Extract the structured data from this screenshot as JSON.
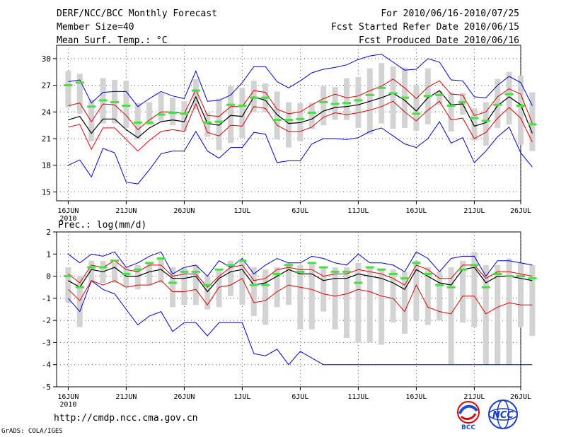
{
  "header": {
    "title": "DERF/NCC/BCC Monthly Forecast",
    "member_size": "Member Size=40",
    "variable": "Mean Surf. Temp.: °C",
    "period": "For 2010/06/16-2010/07/25",
    "started": "Fcst Started Refer Date 2010/06/15",
    "produced": "Fcst Produced Date 2010/06/16"
  },
  "footer": {
    "url": "http://cmdp.ncc.cma.gov.cn",
    "credit": "GrADS: COLA/IGES",
    "logo_left_text": "BCC",
    "logo_right_text": "NCC"
  },
  "colors": {
    "box": "#d3d3d3",
    "median": "#000000",
    "spread": "#e00000",
    "extreme": "#0000cc",
    "bar": "#44e044",
    "grid": "#555555"
  },
  "chart_data": [
    {
      "type": "line",
      "title": "Mean Surf. Temp.: °C",
      "ylabel": "°C",
      "ylim": [
        14,
        31.5
      ],
      "yticks": [
        15,
        18,
        21,
        24,
        27,
        30
      ],
      "x_ticks": [
        {
          "day": 0,
          "label": "16JUN",
          "sub": "2010"
        },
        {
          "day": 5,
          "label": "21JUN",
          "sub": ""
        },
        {
          "day": 10,
          "label": "26JUN",
          "sub": ""
        },
        {
          "day": 15,
          "label": "1JUL",
          "sub": ""
        },
        {
          "day": 20,
          "label": "6JUL",
          "sub": ""
        },
        {
          "day": 25,
          "label": "11JUL",
          "sub": ""
        },
        {
          "day": 30,
          "label": "16JUL",
          "sub": ""
        },
        {
          "day": 35,
          "label": "21JUL",
          "sub": ""
        },
        {
          "day": 39,
          "label": "26JUL",
          "sub": ""
        }
      ],
      "xlim": [
        -1,
        39
      ],
      "median": [
        23.1,
        23.5,
        21.6,
        23.2,
        23.2,
        22.0,
        21.1,
        22.2,
        22.9,
        23.1,
        22.9,
        25.7,
        22.7,
        22.5,
        23.6,
        23.5,
        25.7,
        25.3,
        23.7,
        22.7,
        22.8,
        23.2,
        24.1,
        24.5,
        24.6,
        24.8,
        25.2,
        25.6,
        26.1,
        25.3,
        24.1,
        25.6,
        26.4,
        24.8,
        24.9,
        22.4,
        22.8,
        24.7,
        25.7,
        24.8,
        21.6
      ],
      "upper": [
        24.7,
        25.0,
        22.9,
        24.9,
        24.8,
        23.6,
        22.0,
        23.1,
        24.0,
        24.0,
        23.8,
        26.5,
        23.6,
        23.5,
        24.6,
        24.6,
        26.4,
        26.2,
        24.3,
        23.8,
        24.0,
        24.8,
        25.5,
        26.0,
        25.6,
        25.8,
        26.4,
        26.9,
        27.7,
        26.7,
        25.5,
        26.8,
        27.5,
        26.0,
        25.9,
        23.6,
        24.0,
        25.7,
        26.6,
        26.0,
        22.7
      ],
      "lower": [
        22.3,
        22.6,
        19.8,
        22.2,
        22.2,
        20.9,
        19.6,
        20.8,
        21.8,
        22.0,
        21.8,
        24.9,
        21.7,
        21.3,
        22.5,
        22.4,
        24.6,
        24.4,
        22.5,
        21.8,
        21.8,
        22.3,
        23.4,
        23.9,
        23.7,
        23.9,
        24.2,
        24.6,
        25.2,
        24.0,
        23.0,
        24.2,
        25.2,
        23.1,
        23.3,
        21.0,
        21.7,
        23.3,
        24.5,
        23.3,
        20.6
      ],
      "max": [
        27.4,
        27.6,
        25.0,
        26.2,
        26.3,
        26.3,
        24.6,
        25.5,
        26.3,
        25.8,
        25.5,
        28.6,
        25.2,
        25.3,
        25.9,
        27.3,
        29.1,
        29.1,
        27.4,
        26.7,
        27.5,
        28.4,
        28.8,
        29.0,
        29.3,
        29.9,
        30.3,
        30.5,
        29.6,
        28.7,
        28.8,
        30.0,
        29.6,
        27.6,
        27.5,
        25.7,
        25.6,
        27.0,
        28.0,
        27.3,
        24.7
      ],
      "min": [
        18.0,
        18.6,
        16.7,
        19.9,
        19.4,
        16.1,
        15.9,
        17.5,
        19.3,
        19.6,
        19.6,
        21.8,
        19.6,
        18.8,
        20.0,
        20.0,
        21.7,
        21.5,
        18.3,
        18.5,
        18.5,
        20.4,
        21.0,
        21.0,
        20.9,
        21.1,
        21.8,
        22.2,
        21.3,
        20.4,
        20.0,
        21.0,
        22.9,
        20.5,
        21.1,
        18.3,
        19.6,
        21.2,
        22.3,
        19.4,
        17.8
      ],
      "box_top": [
        28.6,
        28.3,
        25.4,
        27.8,
        27.6,
        27.5,
        25.0,
        25.1,
        26.1,
        25.6,
        25.2,
        27.7,
        23.9,
        25.5,
        26.9,
        26.7,
        27.5,
        27.2,
        26.3,
        25.1,
        25.0,
        25.0,
        26.9,
        26.8,
        27.8,
        27.9,
        28.9,
        29.5,
        29.1,
        29.0,
        27.0,
        28.9,
        26.3,
        26.2,
        26.1,
        24.4,
        25.1,
        27.7,
        28.5,
        28.1,
        26.2
      ],
      "box_bot": [
        24.5,
        23.8,
        20.7,
        22.7,
        22.7,
        22.2,
        20.9,
        22.5,
        23.0,
        22.5,
        21.8,
        24.3,
        21.2,
        19.7,
        20.5,
        21.1,
        24.0,
        24.0,
        20.9,
        20.0,
        20.7,
        22.1,
        22.5,
        23.1,
        23.1,
        22.2,
        21.5,
        22.7,
        22.1,
        22.2,
        21.9,
        22.6,
        24.8,
        21.8,
        23.7,
        20.8,
        20.2,
        22.2,
        22.6,
        20.3,
        19.6
      ],
      "bar": [
        27.0,
        27.3,
        24.6,
        25.3,
        25.1,
        24.7,
        22.8,
        22.8,
        23.7,
        23.9,
        23.8,
        26.4,
        22.8,
        22.9,
        24.8,
        24.7,
        25.6,
        25.6,
        23.1,
        23.1,
        23.2,
        23.9,
        25.1,
        24.9,
        25.0,
        25.3,
        25.9,
        26.7,
        26.1,
        25.6,
        23.8,
        25.8,
        25.9,
        24.7,
        25.1,
        23.3,
        23.0,
        24.8,
        26.0,
        24.7,
        22.6
      ]
    },
    {
      "type": "line",
      "title": "Prec.: log(mm/d)",
      "ylabel": "log(mm/d)",
      "ylim": [
        -5,
        2
      ],
      "yticks": [
        -5,
        -4,
        -3,
        -2,
        -1,
        0,
        1,
        2
      ],
      "x_ticks": [
        {
          "day": 0,
          "label": "16JUN",
          "sub": "2010"
        },
        {
          "day": 5,
          "label": "21JUN",
          "sub": ""
        },
        {
          "day": 10,
          "label": "26JUN",
          "sub": ""
        },
        {
          "day": 15,
          "label": "1JUL",
          "sub": ""
        },
        {
          "day": 20,
          "label": "6JUL",
          "sub": ""
        },
        {
          "day": 25,
          "label": "11JUL",
          "sub": ""
        },
        {
          "day": 30,
          "label": "16JUL",
          "sub": ""
        },
        {
          "day": 35,
          "label": "21JUL",
          "sub": ""
        },
        {
          "day": 39,
          "label": "26JUL",
          "sub": ""
        }
      ],
      "xlim": [
        -1,
        39
      ],
      "median": [
        -0.2,
        -0.5,
        0.3,
        0.2,
        0.4,
        0.0,
        0.0,
        0.2,
        0.3,
        -0.1,
        -0.1,
        0.0,
        -0.7,
        -0.1,
        0.2,
        0.3,
        -0.4,
        -0.3,
        0.0,
        0.3,
        0.1,
        0.1,
        -0.2,
        -0.1,
        -0.1,
        0.1,
        0.0,
        -0.1,
        -0.3,
        -0.6,
        0.3,
        0.0,
        -0.3,
        -0.4,
        0.3,
        0.4,
        -0.3,
        0.0,
        0.0,
        -0.1,
        -0.2
      ],
      "upper": [
        0.1,
        -0.3,
        0.5,
        0.4,
        0.7,
        0.3,
        0.2,
        0.5,
        0.5,
        0.0,
        0.1,
        0.1,
        -0.5,
        0.0,
        0.4,
        0.5,
        -0.2,
        -0.1,
        0.3,
        0.4,
        0.3,
        0.3,
        0.0,
        0.1,
        0.1,
        0.3,
        0.2,
        0.1,
        -0.1,
        -0.4,
        0.5,
        0.3,
        -0.1,
        -0.1,
        0.5,
        0.5,
        -0.1,
        0.2,
        0.2,
        0.1,
        0.0
      ],
      "lower": [
        -0.6,
        -1.1,
        -0.2,
        -0.4,
        -0.2,
        -0.5,
        -0.4,
        -0.4,
        -0.2,
        -0.7,
        -0.7,
        -0.6,
        -1.3,
        -0.5,
        -0.4,
        -0.1,
        -1.2,
        -1.1,
        -0.7,
        -0.4,
        -0.5,
        -0.6,
        -0.8,
        -0.9,
        -0.8,
        -0.6,
        -0.7,
        -0.9,
        -1.0,
        -1.6,
        -0.4,
        -1.4,
        -1.6,
        -1.7,
        -0.9,
        -0.9,
        -1.7,
        -1.4,
        -1.2,
        -1.3,
        -1.3
      ],
      "max": [
        1.0,
        0.6,
        1.0,
        0.9,
        1.1,
        0.4,
        0.6,
        0.9,
        1.1,
        0.1,
        0.4,
        0.5,
        0.0,
        0.7,
        0.4,
        0.8,
        0.1,
        0.5,
        0.8,
        0.6,
        0.6,
        0.9,
        0.8,
        0.6,
        0.5,
        1.0,
        0.6,
        0.6,
        0.5,
        0.2,
        1.1,
        0.8,
        0.2,
        0.8,
        0.9,
        0.9,
        0.0,
        0.7,
        0.7,
        0.6,
        0.5
      ],
      "min": [
        -1.0,
        -1.6,
        -0.2,
        -0.6,
        -0.8,
        -1.5,
        -2.2,
        -1.8,
        -1.6,
        -2.5,
        -2.1,
        -2.1,
        -2.7,
        -2.1,
        -2.1,
        -2.1,
        -3.5,
        -3.6,
        -3.3,
        -4.0,
        -3.4,
        -3.7,
        -4.0,
        -4.0,
        -4.0,
        -4.0,
        -4.0,
        -4.0,
        -4.0,
        -4.0,
        -4.0,
        -4.0,
        -4.0,
        -4.0,
        -4.0,
        -4.0,
        -4.0,
        -4.0,
        -4.0,
        -4.0,
        -4.0
      ],
      "box_top": [
        0.4,
        0.0,
        0.7,
        0.7,
        0.6,
        0.4,
        0.5,
        0.6,
        0.8,
        0.4,
        0.4,
        0.5,
        0.0,
        0.3,
        0.7,
        0.7,
        0.4,
        0.3,
        0.4,
        0.6,
        0.5,
        0.6,
        0.4,
        0.4,
        0.4,
        0.6,
        0.4,
        0.3,
        0.3,
        0.2,
        0.7,
        0.4,
        0.2,
        0.4,
        0.7,
        1.1,
        0.5,
        0.5,
        0.8,
        0.6,
        0.5
      ],
      "box_bot": [
        -1.2,
        -2.3,
        -0.3,
        -0.3,
        -0.3,
        -0.5,
        -0.6,
        -0.4,
        -0.3,
        -1.4,
        -1.3,
        -1.3,
        -1.5,
        -1.4,
        -0.9,
        -1.3,
        -1.8,
        -2.2,
        -1.4,
        -1.3,
        -2.4,
        -2.4,
        -1.6,
        -2.4,
        -2.8,
        -3.0,
        -3.0,
        -3.1,
        -2.1,
        -2.6,
        -2.0,
        -2.2,
        -2.0,
        -4.0,
        -2.1,
        -2.3,
        -4.0,
        -4.0,
        -4.0,
        -2.3,
        -2.7
      ],
      "bar": [
        0.0,
        -0.5,
        0.4,
        0.4,
        0.7,
        0.1,
        0.3,
        0.6,
        0.8,
        -0.3,
        0.2,
        0.2,
        -0.4,
        0.3,
        0.5,
        0.7,
        -0.4,
        -0.4,
        0.1,
        0.5,
        0.2,
        0.6,
        0.4,
        0.2,
        0.2,
        -0.3,
        0.4,
        0.3,
        0.1,
        -0.1,
        0.6,
        0.1,
        -0.4,
        -0.5,
        0.3,
        0.5,
        -0.5,
        0.1,
        0.0,
        0.0,
        -0.1
      ]
    }
  ]
}
